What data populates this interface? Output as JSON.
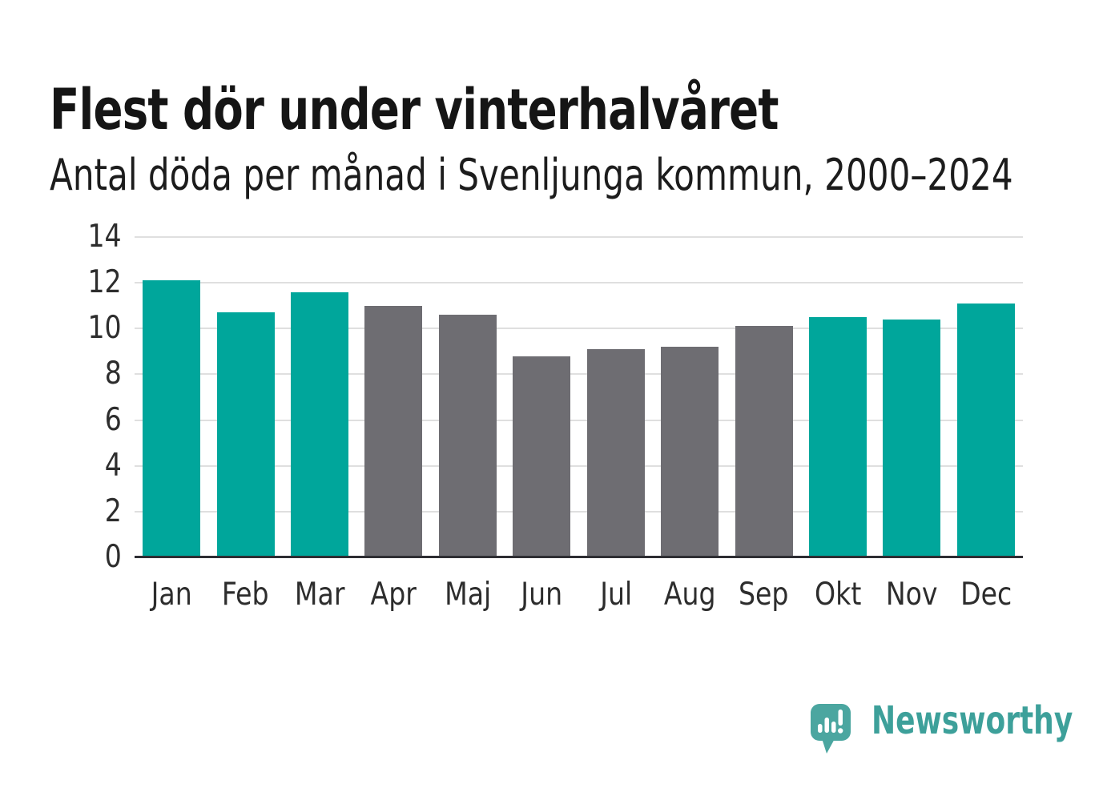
{
  "header": {
    "title": "Flest dör under vinterhalvåret",
    "subtitle": "Antal döda per månad i Svenljunga kommun, 2000–2024"
  },
  "chart_data": {
    "type": "bar",
    "title": "Flest dör under vinterhalvåret",
    "subtitle": "Antal döda per månad i Svenljunga kommun, 2000–2024",
    "categories": [
      "Jan",
      "Feb",
      "Mar",
      "Apr",
      "Maj",
      "Jun",
      "Jul",
      "Aug",
      "Sep",
      "Okt",
      "Nov",
      "Dec"
    ],
    "values": [
      12.1,
      10.7,
      11.6,
      11.0,
      10.6,
      8.8,
      9.1,
      9.2,
      10.1,
      10.5,
      10.4,
      11.1
    ],
    "xlabel": "",
    "ylabel": "",
    "ylim": [
      0,
      14
    ],
    "yticks": [
      0,
      2,
      4,
      6,
      8,
      10,
      12,
      14
    ],
    "grid": true,
    "legend": "none",
    "colors": {
      "highlight": "#00a69b",
      "muted": "#6e6d72"
    },
    "highlight_months": [
      "Jan",
      "Feb",
      "Mar",
      "Okt",
      "Nov",
      "Dec"
    ]
  },
  "branding": {
    "logo_text": "Newsworthy",
    "icon_color": "#4ba6a0",
    "text_color": "#3da09a"
  }
}
